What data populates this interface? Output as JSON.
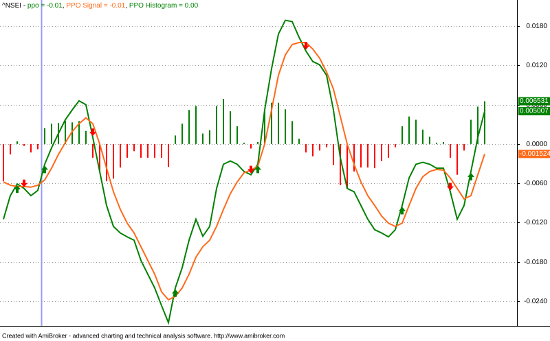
{
  "chart_data": {
    "type": "line",
    "header": {
      "symbol": "^NSEI -",
      "separator": ","
    },
    "footer": "Created with AmiBroker - advanced charting and technical analysis software. http://www.amibroker.com",
    "ylim": [
      -0.0278,
      0.022
    ],
    "yticks": [
      {
        "value": 0.018,
        "label": "0.0180"
      },
      {
        "value": 0.012,
        "label": "0.0120"
      },
      {
        "value": 0.006,
        "label": "0.0060"
      },
      {
        "value": 0,
        "label": "0.0000"
      },
      {
        "value": -0.006,
        "label": "-0.0060"
      },
      {
        "value": -0.012,
        "label": "-0.0120"
      },
      {
        "value": -0.018,
        "label": "-0.0180"
      },
      {
        "value": -0.024,
        "label": "-0.0240"
      }
    ],
    "grid": true,
    "series": [
      {
        "name": "ppo = -0.01",
        "kind": "line",
        "color": "#008000",
        "last_label": "0.005007",
        "values": [
          -0.0115,
          -0.0079,
          -0.0061,
          -0.0068,
          -0.0079,
          -0.0071,
          -0.0031,
          -0.0006,
          0.0016,
          0.0037,
          0.0052,
          0.0066,
          0.006,
          0.001,
          -0.0042,
          -0.0094,
          -0.0126,
          -0.0136,
          -0.0142,
          -0.0147,
          -0.0178,
          -0.0199,
          -0.022,
          -0.0247,
          -0.0273,
          -0.022,
          -0.0189,
          -0.0147,
          -0.0115,
          -0.0141,
          -0.0126,
          -0.0068,
          -0.0031,
          -0.0026,
          -0.0031,
          -0.0042,
          -0.0047,
          -0.0031,
          0.0052,
          0.0115,
          0.0168,
          0.0189,
          0.0187,
          0.0163,
          0.0142,
          0.0126,
          0.0121,
          0.0105,
          0.0052,
          -0.0021,
          -0.0068,
          -0.0073,
          -0.0094,
          -0.0115,
          -0.0131,
          -0.0136,
          -0.0142,
          -0.0131,
          -0.0094,
          -0.0052,
          -0.0031,
          -0.0028,
          -0.0031,
          -0.0037,
          -0.0037,
          -0.0073,
          -0.0115,
          -0.0094,
          -0.0042,
          0.001,
          0.005007
        ]
      },
      {
        "name": "PPO Signal = -0.01",
        "kind": "line",
        "color": "#ff6a1a",
        "last_label": "-0.001524",
        "values": [
          -0.0058,
          -0.0063,
          -0.0065,
          -0.0065,
          -0.0066,
          -0.0063,
          -0.0055,
          -0.0037,
          -0.0016,
          0.0002,
          0.0019,
          0.0031,
          0.004,
          0.0031,
          0.0,
          -0.0037,
          -0.0073,
          -0.01,
          -0.0121,
          -0.0136,
          -0.0157,
          -0.0178,
          -0.0199,
          -0.0226,
          -0.0238,
          -0.0233,
          -0.022,
          -0.0199,
          -0.0173,
          -0.0157,
          -0.0147,
          -0.0126,
          -0.01,
          -0.0076,
          -0.0058,
          -0.0044,
          -0.004,
          -0.0034,
          0.0,
          0.0052,
          0.0105,
          0.0136,
          0.0152,
          0.0155,
          0.0155,
          0.0145,
          0.0131,
          0.011,
          0.0084,
          0.0042,
          0.0,
          -0.0031,
          -0.0058,
          -0.0079,
          -0.0094,
          -0.011,
          -0.0121,
          -0.0126,
          -0.0121,
          -0.0094,
          -0.0068,
          -0.005,
          -0.0042,
          -0.0039,
          -0.004,
          -0.0052,
          -0.0068,
          -0.0084,
          -0.0079,
          -0.0047,
          -0.001524
        ]
      },
      {
        "name": "PPO Histogram = 0.00",
        "kind": "histogram",
        "color": "#008000",
        "down_color": "#ff0000",
        "last_label": "0.006531",
        "values": [
          -0.0057,
          -0.0016,
          0.0004,
          -0.0003,
          -0.0013,
          -0.0008,
          0.0024,
          0.0031,
          0.0032,
          0.0035,
          0.0033,
          0.0035,
          0.002,
          -0.0021,
          -0.0042,
          -0.0057,
          -0.0053,
          -0.0036,
          -0.0021,
          -0.0011,
          -0.0021,
          -0.0021,
          -0.0021,
          -0.0021,
          -0.0035,
          0.0013,
          0.0031,
          0.0052,
          0.0058,
          0.0016,
          0.0021,
          0.0058,
          0.0069,
          0.005,
          0.0027,
          0.0002,
          -0.0007,
          0.0003,
          0.0052,
          0.0063,
          0.0063,
          0.0053,
          0.0035,
          0.0008,
          -0.0013,
          -0.0019,
          -0.001,
          -0.0005,
          -0.0032,
          -0.0063,
          -0.0068,
          -0.0042,
          -0.0036,
          -0.0036,
          -0.0037,
          -0.0026,
          -0.0021,
          -0.0005,
          0.0027,
          0.0042,
          0.0037,
          0.0022,
          0.0011,
          0.0002,
          0.0003,
          -0.0021,
          -0.0047,
          -0.001,
          0.0037,
          0.0057,
          0.006531
        ]
      }
    ]
  }
}
